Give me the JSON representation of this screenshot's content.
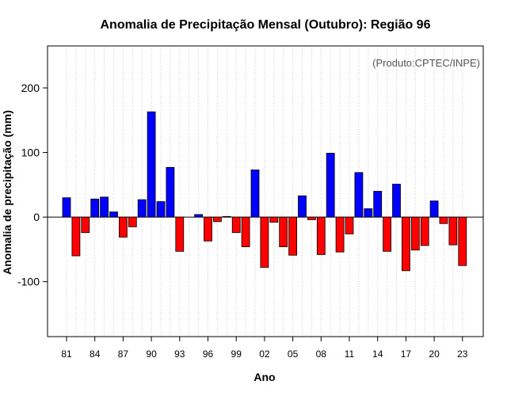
{
  "chart_data": {
    "type": "bar",
    "title": "Anomalia de Precipitação Mensal (Outubro): Região 96",
    "xlabel": "Ano",
    "ylabel": "Anomalia de precipitação (mm)",
    "credit": "(Produto:CPTEC/INPE)",
    "ylim": [
      -185,
      265
    ],
    "yticks": [
      -100,
      0,
      100,
      200
    ],
    "ytick_labels": [
      "-100",
      "0",
      "100",
      "200"
    ],
    "grid": "vertical dotted",
    "colors": {
      "positive": "#0000ff",
      "negative": "#ff0000",
      "edge": "#000000",
      "grid": "#cccccc",
      "zero_line": "#000000"
    },
    "x_tick_labels": [
      "81",
      "84",
      "87",
      "90",
      "93",
      "96",
      "99",
      "02",
      "05",
      "08",
      "11",
      "14",
      "17",
      "20",
      "23"
    ],
    "x_tick_every": 3,
    "categories": [
      "81",
      "82",
      "83",
      "84",
      "85",
      "86",
      "87",
      "88",
      "89",
      "90",
      "91",
      "92",
      "93",
      "94",
      "95",
      "96",
      "97",
      "98",
      "99",
      "00",
      "01",
      "02",
      "03",
      "04",
      "05",
      "06",
      "07",
      "08",
      "09",
      "10",
      "11",
      "12",
      "13",
      "14",
      "15",
      "16",
      "17",
      "18",
      "19",
      "20",
      "21",
      "22",
      "23"
    ],
    "values": [
      30,
      -60,
      -24,
      28,
      31,
      8,
      -31,
      -15,
      27,
      163,
      24,
      77,
      -53,
      0,
      4,
      -37,
      -7,
      1,
      -24,
      -46,
      73,
      -78,
      -8,
      -46,
      -59,
      33,
      -4,
      -58,
      99,
      -54,
      -26,
      69,
      13,
      40,
      -53,
      51,
      -83,
      -51,
      -44,
      25,
      -10,
      -43,
      -75
    ]
  }
}
